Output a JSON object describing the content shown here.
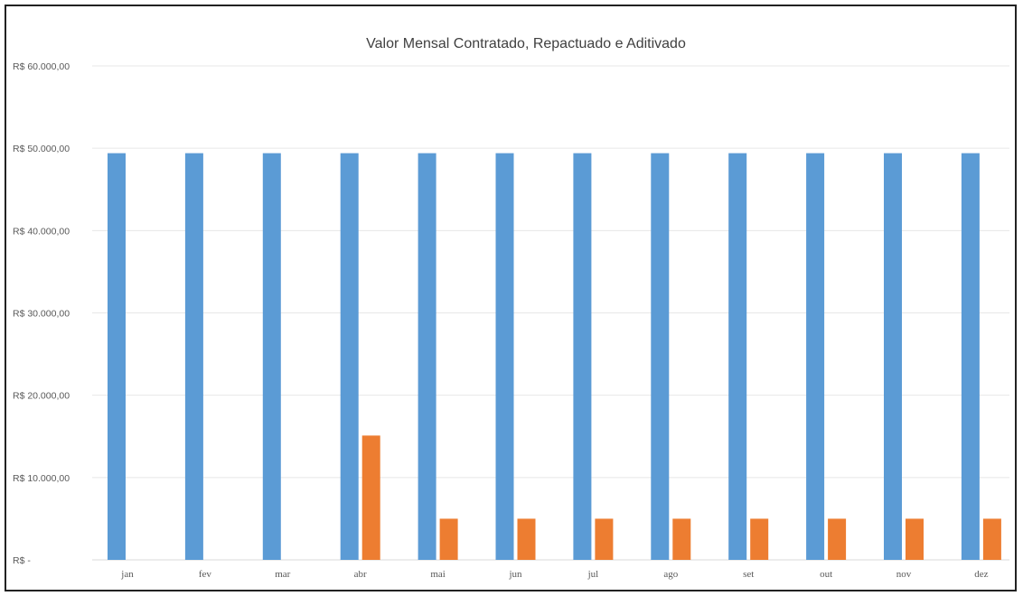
{
  "chart_data": {
    "type": "bar",
    "title": "Valor Mensal Contratado, Repactuado e Aditivado",
    "xlabel": "",
    "ylabel": "",
    "categories": [
      "jan",
      "fev",
      "mar",
      "abr",
      "mai",
      "jun",
      "jul",
      "ago",
      "set",
      "out",
      "nov",
      "dez"
    ],
    "series": [
      {
        "color": "#5B9BD5",
        "values": [
          49400,
          49400,
          49400,
          49400,
          49400,
          49400,
          49400,
          49400,
          49400,
          49400,
          49400,
          49400
        ]
      },
      {
        "color": "#ED7D31",
        "values": [
          0,
          0,
          0,
          15100,
          5000,
          5000,
          5000,
          5000,
          5000,
          5000,
          5000,
          5000
        ]
      }
    ],
    "ylim": [
      0,
      60000
    ],
    "yticks": [
      0,
      10000,
      20000,
      30000,
      40000,
      50000,
      60000
    ],
    "ytick_labels": [
      "R$ -",
      "R$ 10.000,00",
      "R$ 20.000,00",
      "R$ 30.000,00",
      "R$ 40.000,00",
      "R$ 50.000,00",
      "R$ 60.000,00"
    ],
    "grid": true,
    "gridline_color": "#E7E7E7",
    "legend": "none"
  }
}
